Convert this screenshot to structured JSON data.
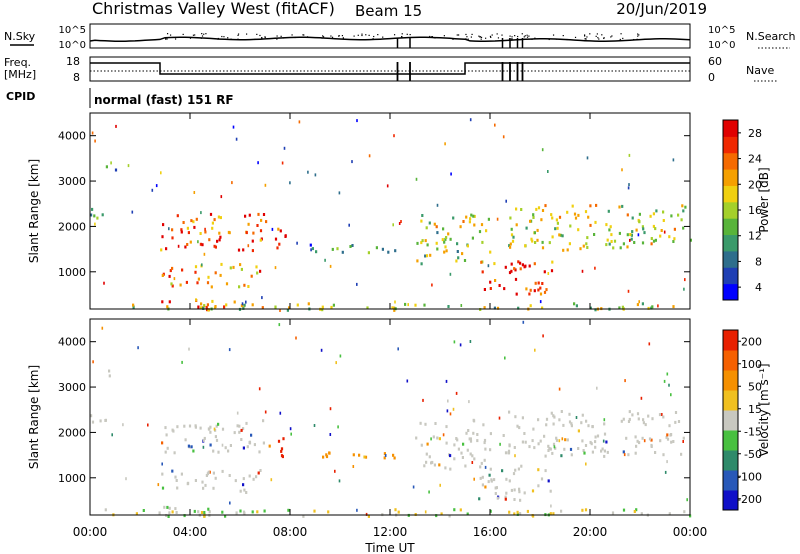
{
  "header": {
    "title": "Christmas Valley West (fitACF)",
    "beam": "Beam 15",
    "date": "20/Jun/2019"
  },
  "panels": {
    "nsky": {
      "label": "N.Sky",
      "ticks_left": [
        "10^5",
        "10^0"
      ],
      "ticks_right": [
        "10^5",
        "10^0"
      ],
      "legend": "N.Search"
    },
    "freq": {
      "label_1": "Freq.",
      "label_2": "[MHz]",
      "ticks_left": [
        "18",
        "8"
      ],
      "ticks_right": [
        "60",
        "0"
      ],
      "legend": "Nave"
    },
    "cpid": {
      "label": "CPID",
      "mode": "normal (fast) 151 RF"
    }
  },
  "colors": {
    "power_scale": [
      "#0000ff",
      "#1f3fb4",
      "#2e6e8c",
      "#3a9a6a",
      "#58b43a",
      "#a4d02a",
      "#f0d010",
      "#f5a000",
      "#f56a00",
      "#f02800",
      "#e00000"
    ],
    "velocity_scale": [
      "#1010c8",
      "#2858b8",
      "#2e8a6a",
      "#48c040",
      "#c8c8c0",
      "#f0c020",
      "#f59000",
      "#f56000",
      "#e82000"
    ]
  },
  "chart_data": [
    {
      "type": "heatmap",
      "name": "power",
      "xlabel": "",
      "ylabel": "Slant Range [km]",
      "xlim": [
        0,
        24
      ],
      "ylim": [
        180,
        4500
      ],
      "x_ticks": [
        "00:00",
        "04:00",
        "08:00",
        "12:00",
        "16:00",
        "20:00",
        "00:00"
      ],
      "y_ticks": [
        1000,
        2000,
        3000,
        4000
      ],
      "colorbar": {
        "label": "Power [dB]",
        "ticks": [
          "28",
          "24",
          "20",
          "16",
          "12",
          "8",
          "4"
        ]
      }
    },
    {
      "type": "heatmap",
      "name": "velocity",
      "xlabel": "Time UT",
      "ylabel": "Slant Range [km]",
      "xlim": [
        0,
        24
      ],
      "ylim": [
        180,
        4500
      ],
      "x_ticks": [
        "00:00",
        "04:00",
        "08:00",
        "12:00",
        "16:00",
        "20:00",
        "00:00"
      ],
      "y_ticks": [
        1000,
        2000,
        3000,
        4000
      ],
      "colorbar": {
        "label": "Velocity [m s⁻¹]",
        "ticks": [
          "200",
          "100",
          "50",
          "15",
          "-15",
          "-50",
          "-100",
          "-200"
        ]
      }
    }
  ]
}
